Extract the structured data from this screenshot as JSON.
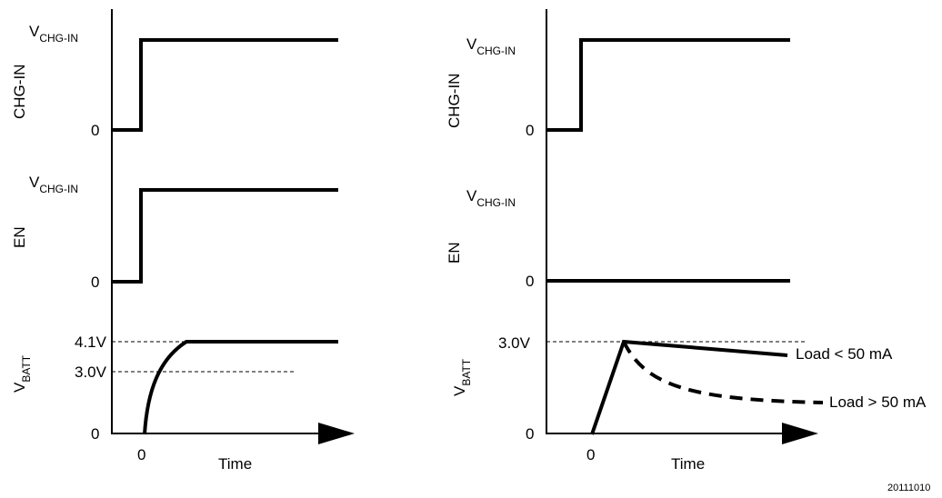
{
  "left_panel": {
    "chg_in": {
      "axis_label": "CHG-IN",
      "high_label": "V",
      "high_sub": "CHG-IN",
      "low_label": "0"
    },
    "en": {
      "axis_label": "EN",
      "high_label": "V",
      "high_sub": "CHG-IN",
      "low_label": "0"
    },
    "vbatt": {
      "axis_label": "V",
      "axis_sub": "BATT",
      "level_high": "4.1V",
      "level_low": "3.0V",
      "zero_label": "0"
    },
    "x_zero": "0",
    "x_label": "Time"
  },
  "right_panel": {
    "chg_in": {
      "axis_label": "CHG-IN",
      "high_label": "V",
      "high_sub": "CHG-IN",
      "low_label": "0"
    },
    "en": {
      "axis_label": "EN",
      "high_label": "V",
      "high_sub": "CHG-IN",
      "low_label": "0"
    },
    "vbatt": {
      "axis_label": "V",
      "axis_sub": "BATT",
      "level": "3.0V",
      "zero_label": "0"
    },
    "curve_small_load": "Load < 50 mA",
    "curve_large_load": "Load > 50 mA",
    "x_zero": "0",
    "x_label": "Time"
  },
  "figure_id": "20111010"
}
